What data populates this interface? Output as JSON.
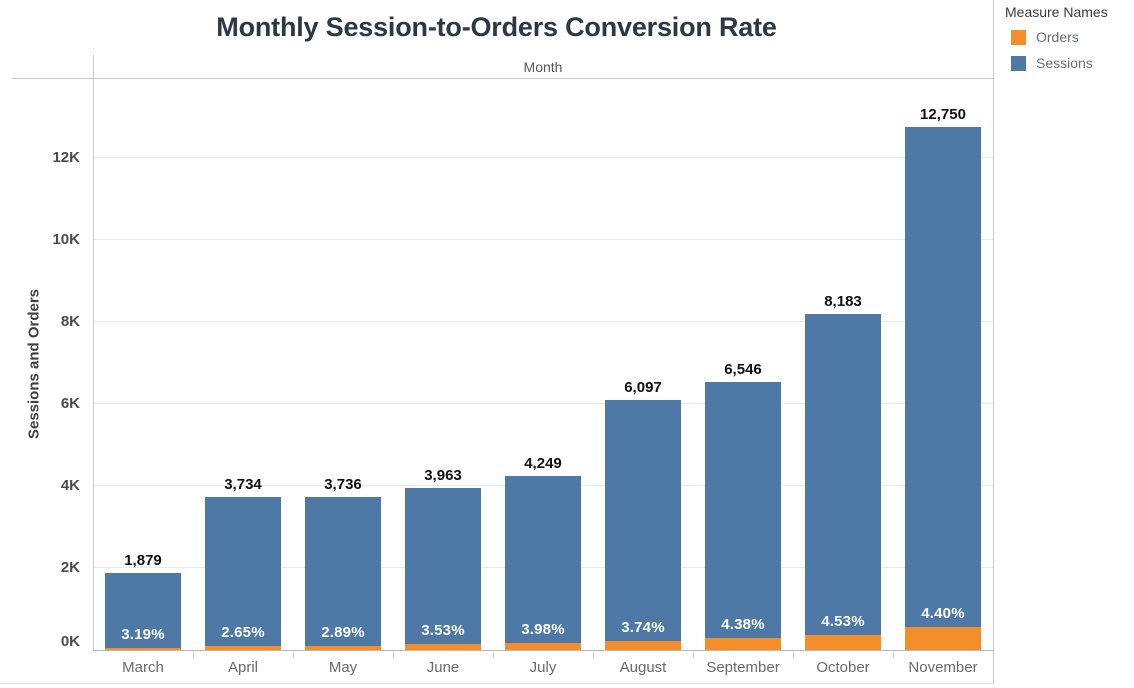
{
  "title": "Monthly Session-to-Orders Conversion Rate",
  "legend": {
    "title": "Measure Names",
    "items": [
      {
        "label": "Orders",
        "color": "#f28e2b"
      },
      {
        "label": "Sessions",
        "color": "#4e79a7"
      }
    ]
  },
  "colors": {
    "sessions_blue": "#4e79a7",
    "orders_orange": "#f28e2b"
  },
  "chart_data": {
    "type": "bar",
    "bar_orientation": "vertical",
    "stacked": false,
    "title": "Monthly Session-to-Orders Conversion Rate",
    "column_header": "Month",
    "xlabel": "Month",
    "ylabel": "Sessions and Orders",
    "categories": [
      "March",
      "April",
      "May",
      "June",
      "July",
      "August",
      "September",
      "October",
      "November"
    ],
    "series": [
      {
        "name": "Sessions",
        "color": "#4e79a7",
        "values": [
          1879,
          3734,
          3736,
          3963,
          4249,
          6097,
          6546,
          8183,
          12750
        ],
        "value_labels": [
          "1,879",
          "3,734",
          "3,736",
          "3,963",
          "4,249",
          "6,097",
          "6,546",
          "8,183",
          "12,750"
        ]
      },
      {
        "name": "Orders",
        "color": "#f28e2b",
        "values": [
          60,
          99,
          108,
          140,
          169,
          228,
          287,
          371,
          561
        ]
      }
    ],
    "conversion_rate_labels": [
      "3.19%",
      "2.65%",
      "2.89%",
      "3.53%",
      "3.98%",
      "3.74%",
      "4.38%",
      "4.53%",
      "4.40%"
    ],
    "y_ticks": [
      {
        "label": "0K",
        "value": 0
      },
      {
        "label": "2K",
        "value": 2000
      },
      {
        "label": "4K",
        "value": 4000
      },
      {
        "label": "6K",
        "value": 6000
      },
      {
        "label": "8K",
        "value": 8000
      },
      {
        "label": "10K",
        "value": 10000
      },
      {
        "label": "12K",
        "value": 12000
      }
    ],
    "ylim": [
      0,
      13950
    ],
    "grid": true,
    "legend_position": "top-right"
  }
}
